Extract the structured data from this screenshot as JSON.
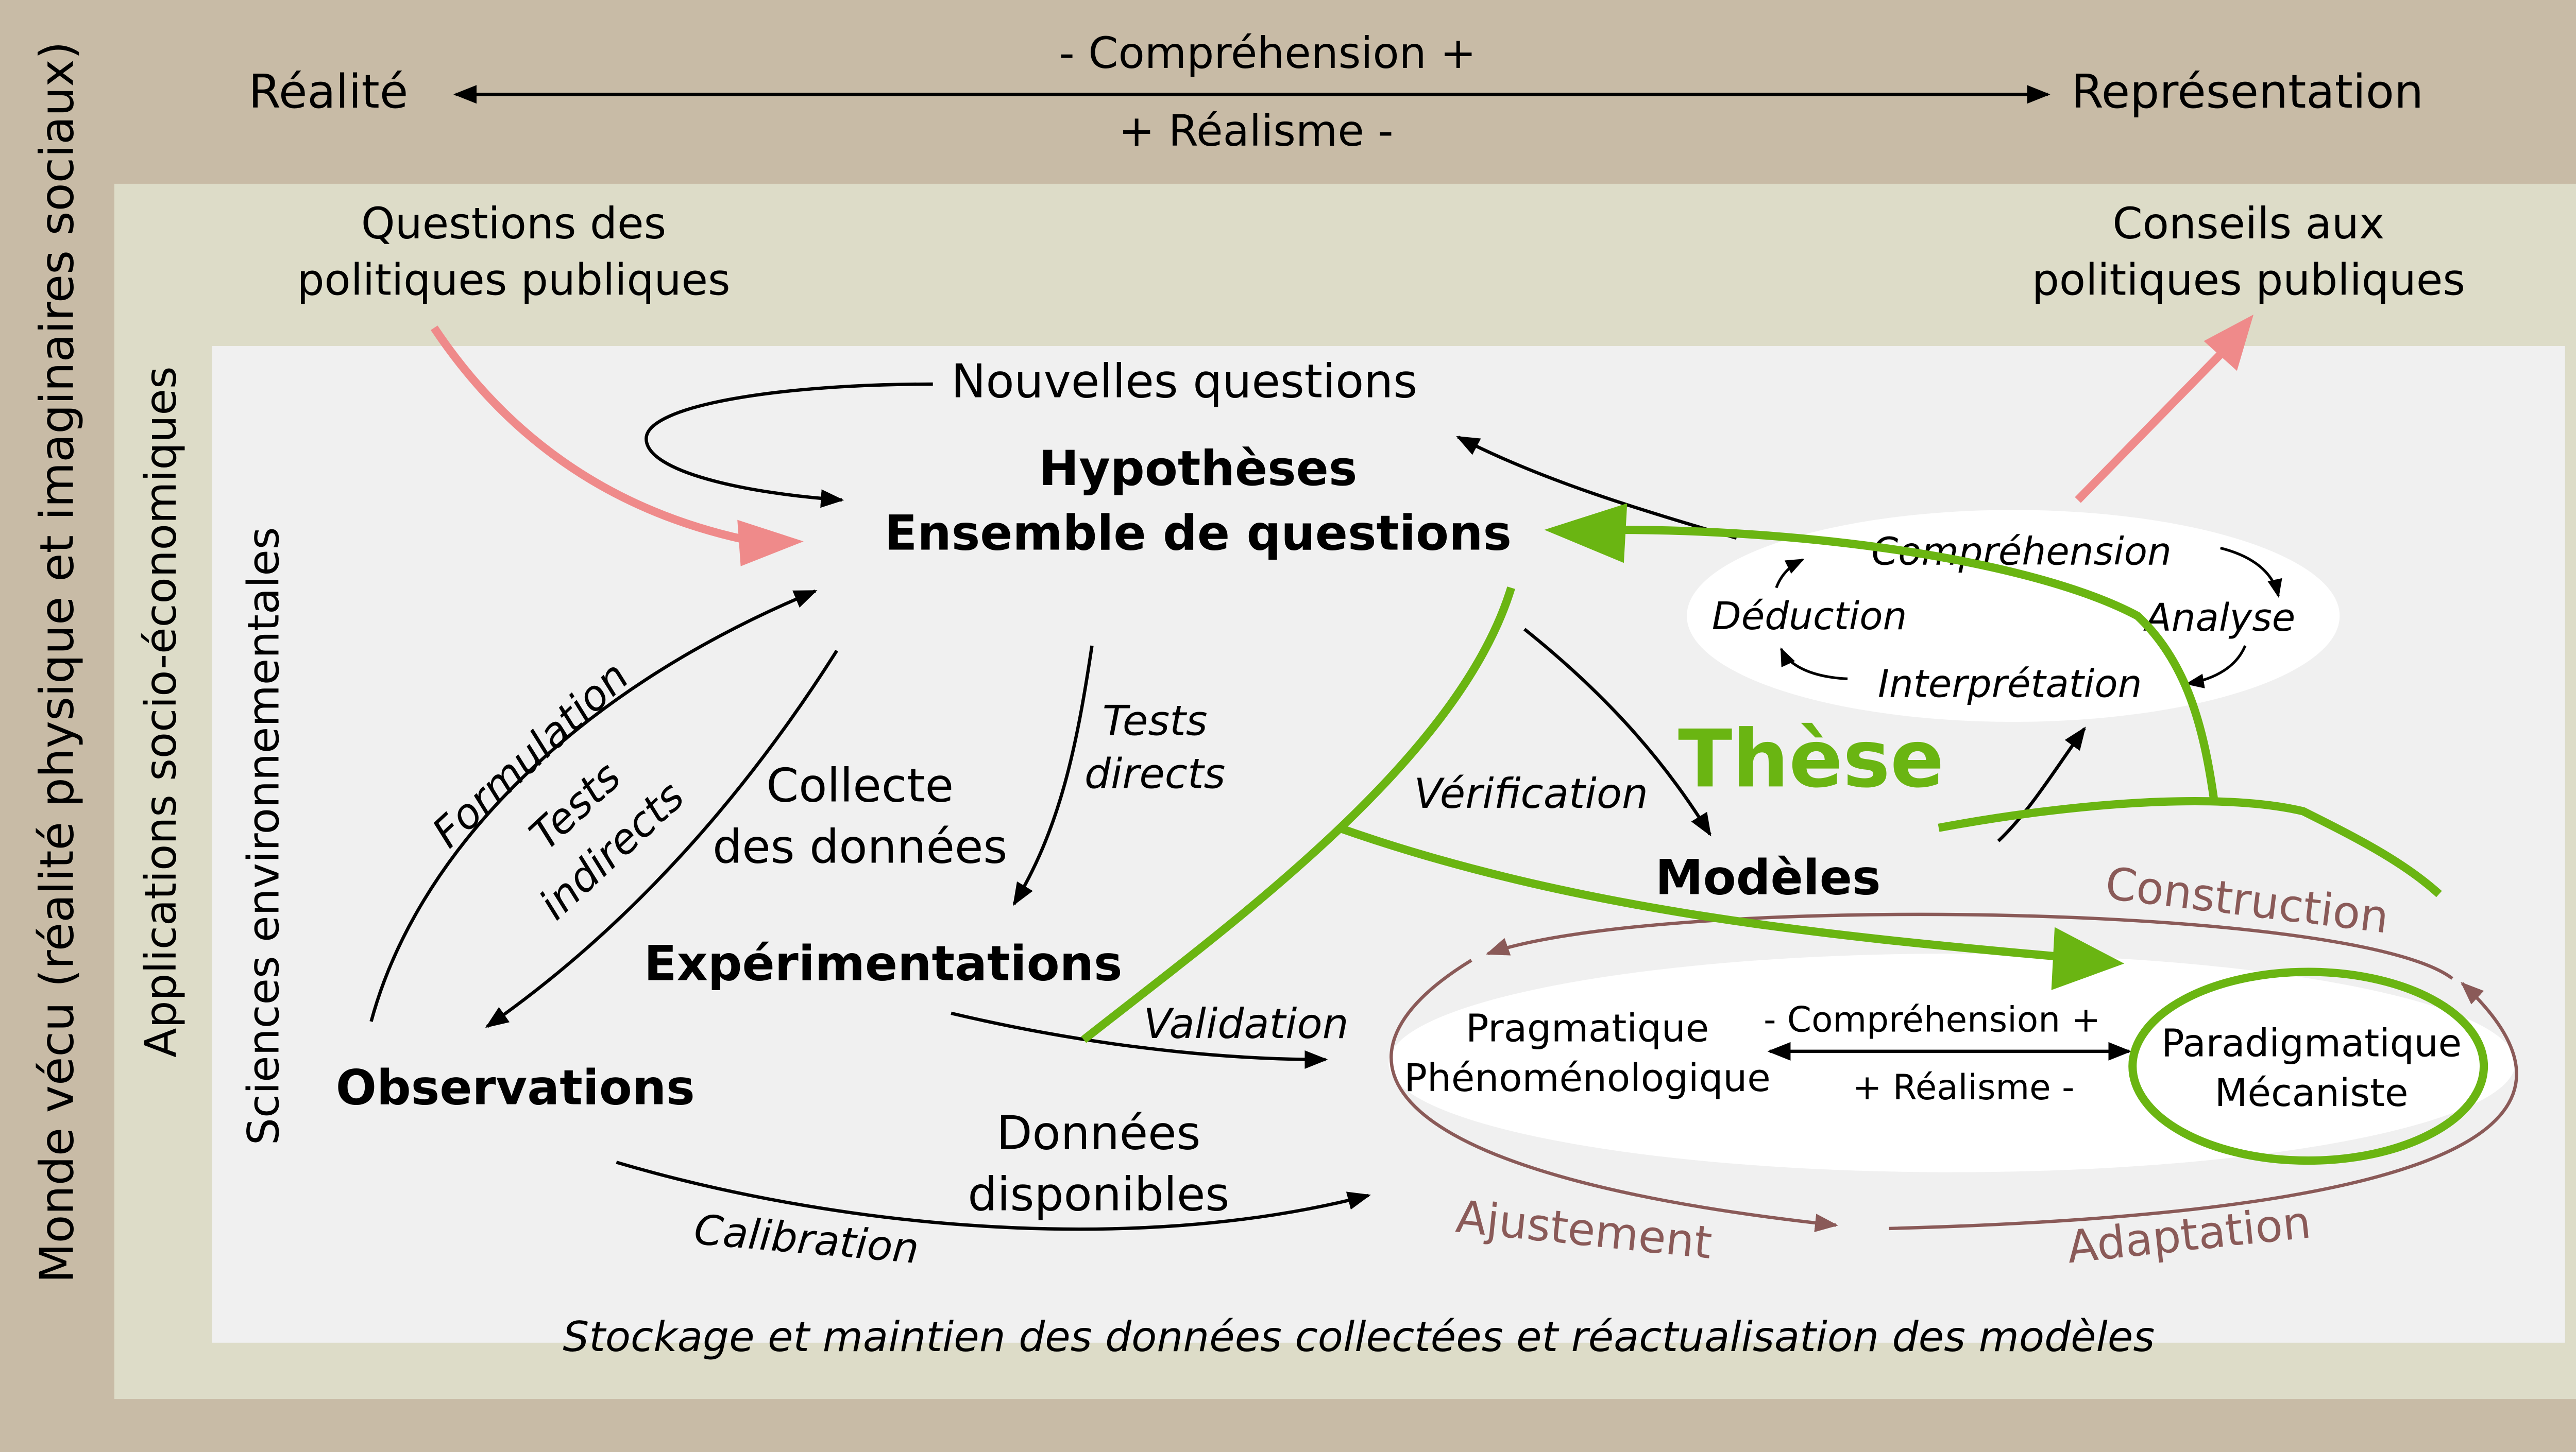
{
  "colors": {
    "outer_bg": "#c8bba6",
    "middle_bg": "#dddcc8",
    "inner_bg": "#f0f0f0",
    "white": "#ffffff",
    "green": "#6ab512",
    "pink": "#ef8a8a",
    "brown": "#8a5a58"
  },
  "outer": {
    "side_label": "Monde vécu (réalité physique et imaginaires sociaux)",
    "top_left": "Réalité",
    "top_right": "Représentation",
    "top_above": "- Compréhension +",
    "top_below": "+ Réalisme -"
  },
  "middle": {
    "side_label": "Applications socio-économiques",
    "questions": [
      "Questions des",
      "politiques publiques"
    ],
    "conseils": [
      "Conseils aux",
      "politiques publiques"
    ]
  },
  "inner": {
    "side_label": "Sciences environnementales",
    "bottom_label": "Stockage et maintien des données collectées et réactualisation des modèles",
    "nouvelles_questions": "Nouvelles questions",
    "hypotheses": "Hypothèses",
    "ensemble": "Ensemble de questions",
    "tests_directs": [
      "Tests",
      "directs"
    ],
    "collecte": [
      "Collecte",
      "des données"
    ],
    "formulation": "Formulation",
    "tests_indirects": [
      "Tests",
      "indirects"
    ],
    "experimentations": "Expérimentations",
    "observations": "Observations",
    "verification": "Vérification",
    "validation": "Validation",
    "donnees": [
      "Données",
      "disponibles"
    ],
    "calibration": "Calibration",
    "these": "Thèse",
    "modeles": "Modèles"
  },
  "cycle": {
    "comprehension": "Compréhension",
    "deduction": "Déduction",
    "analyse": "Analyse",
    "interpretation": "Interprétation"
  },
  "models": {
    "construction": "Construction",
    "ajustement": "Ajustement",
    "adaptation": "Adaptation",
    "left": [
      "Pragmatique",
      "Phénoménologique"
    ],
    "right": [
      "Paradigmatique",
      "Mécaniste"
    ],
    "comprehension": "- Compréhension +",
    "realisme": "+ Réalisme -"
  }
}
